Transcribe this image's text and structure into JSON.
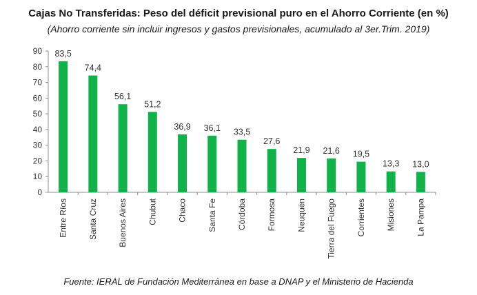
{
  "chart_data": {
    "type": "bar",
    "title": "Cajas No Transferidas: Peso del déficit previsional puro en el Ahorro Corriente (en %)",
    "subtitle": "(Ahorro corriente sin incluir ingresos y gastos previsionales, acumulado al 3er.Trim. 2019)",
    "categories": [
      "Entre Ríos",
      "Santa Cruz",
      "Buenos Aires",
      "Chubut",
      "Chaco",
      "Santa Fe",
      "Córdoba",
      "Formosa",
      "Neuquén",
      "Tierra del Fuego",
      "Corrientes",
      "Misiones",
      "La Pampa"
    ],
    "values": [
      83.5,
      74.4,
      56.1,
      51.2,
      36.9,
      36.1,
      33.5,
      27.6,
      21.9,
      21.6,
      19.5,
      13.3,
      13.0
    ],
    "value_labels": [
      "83,5",
      "74,4",
      "56,1",
      "51,2",
      "36,9",
      "36,1",
      "33,5",
      "27,6",
      "21,9",
      "21,6",
      "19,5",
      "13,3",
      "13,0"
    ],
    "ylim": [
      0,
      90
    ],
    "yticks": [
      0,
      10,
      20,
      30,
      40,
      50,
      60,
      70,
      80,
      90
    ],
    "grid": false,
    "legend": "none",
    "bar_color": "#11b24a",
    "source": "Fuente: IERAL de Fundación Mediterránea en base a DNAP y el Ministerio de Hacienda"
  }
}
